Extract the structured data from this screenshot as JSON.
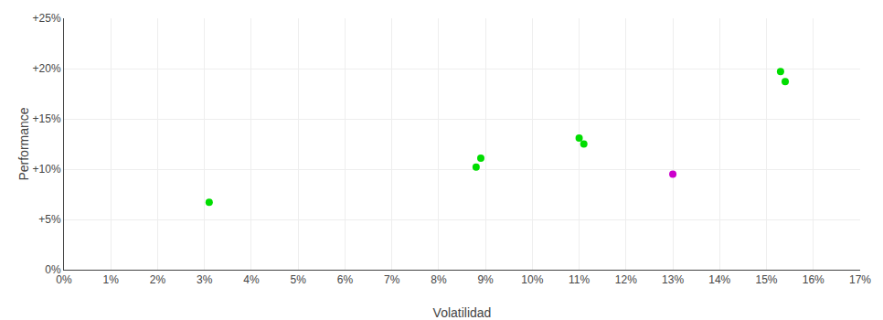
{
  "chart_data": {
    "type": "scatter",
    "xlabel": "Volatilidad",
    "ylabel": "Performance",
    "xlim": [
      0,
      0.17
    ],
    "ylim": [
      0,
      0.25
    ],
    "xticks": [
      {
        "value": 0,
        "label": "0%"
      },
      {
        "value": 0.01,
        "label": "1%"
      },
      {
        "value": 0.02,
        "label": "2%"
      },
      {
        "value": 0.03,
        "label": "3%"
      },
      {
        "value": 0.04,
        "label": "4%"
      },
      {
        "value": 0.05,
        "label": "5%"
      },
      {
        "value": 0.06,
        "label": "6%"
      },
      {
        "value": 0.07,
        "label": "7%"
      },
      {
        "value": 0.08,
        "label": "8%"
      },
      {
        "value": 0.09,
        "label": "9%"
      },
      {
        "value": 0.1,
        "label": "10%"
      },
      {
        "value": 0.11,
        "label": "11%"
      },
      {
        "value": 0.12,
        "label": "12%"
      },
      {
        "value": 0.13,
        "label": "13%"
      },
      {
        "value": 0.14,
        "label": "14%"
      },
      {
        "value": 0.15,
        "label": "15%"
      },
      {
        "value": 0.16,
        "label": "16%"
      },
      {
        "value": 0.17,
        "label": "17%"
      }
    ],
    "yticks": [
      {
        "value": 0,
        "label": "0%"
      },
      {
        "value": 0.05,
        "label": "+5%"
      },
      {
        "value": 0.1,
        "label": "+10%"
      },
      {
        "value": 0.15,
        "label": "+15%"
      },
      {
        "value": 0.2,
        "label": "+20%"
      },
      {
        "value": 0.25,
        "label": "+25%"
      }
    ],
    "grid": true,
    "series": [
      {
        "color": "#00dd00",
        "x": [
          0.031,
          0.089,
          0.088,
          0.11,
          0.111,
          0.153,
          0.154
        ],
        "values": [
          0.067,
          0.111,
          0.102,
          0.131,
          0.125,
          0.197,
          0.187
        ]
      },
      {
        "color": "#cc00cc",
        "x": [
          0.13
        ],
        "values": [
          0.095
        ]
      }
    ]
  }
}
